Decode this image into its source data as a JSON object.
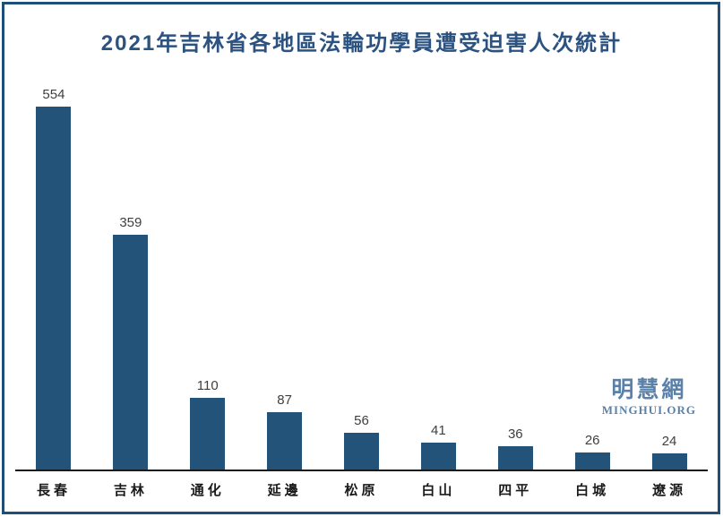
{
  "chart_data": {
    "type": "bar",
    "title": "2021年吉林省各地區法輪功學員遭受迫害人次統計",
    "categories": [
      "長春",
      "吉林",
      "通化",
      "延邊",
      "松原",
      "白山",
      "四平",
      "白城",
      "遼源"
    ],
    "values": [
      554,
      359,
      110,
      87,
      56,
      41,
      36,
      26,
      24
    ],
    "xlabel": "",
    "ylabel": "",
    "ylim": [
      0,
      570
    ],
    "grid": false,
    "legend": false,
    "bar_color": "#235378",
    "value_label_color": "#3f3f3f",
    "category_label_color": "#1a1a1a",
    "axis_line_color": "#1a1a1a",
    "title_color": "#2b5280"
  },
  "branding": {
    "logo_cjk": "明慧網",
    "logo_latin": "MINGHUI.ORG",
    "logo_color": "#5c81a9"
  },
  "frame": {
    "border_color": "#1f4e79",
    "background": "#ffffff"
  }
}
